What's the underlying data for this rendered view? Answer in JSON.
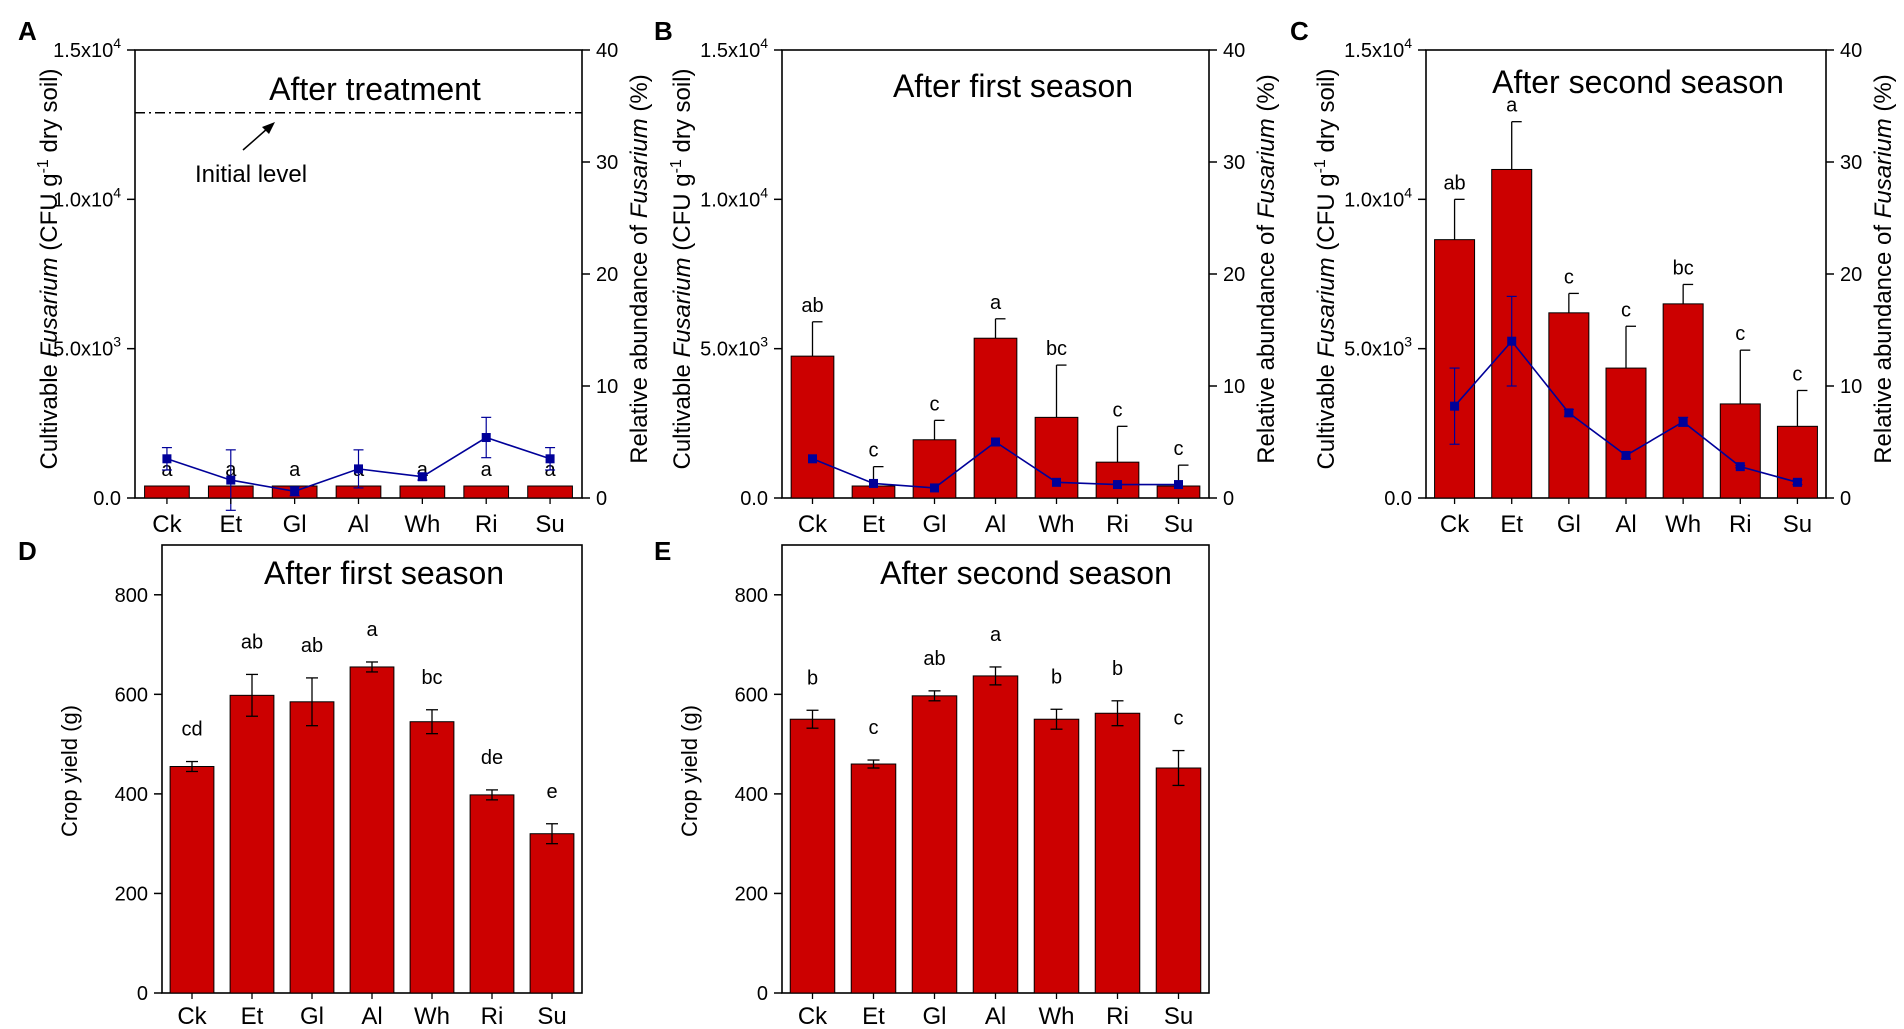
{
  "figure": {
    "shared": {
      "categories": [
        "Ck",
        "Et",
        "Gl",
        "Al",
        "Wh",
        "Ri",
        "Su"
      ],
      "bar_color": "#cc0000",
      "line_color": "#000099",
      "left_ylabel_pre": "Cultivable ",
      "left_ylabel_italic": "Fusarium",
      "left_ylabel_mid": " (CFU g",
      "left_ylabel_sup": "-1",
      "left_ylabel_post": " dry soil)",
      "right_ylabel_pre": "Relative abundance of ",
      "right_ylabel_italic": "Fusarium",
      "right_ylabel_post": "  (%)",
      "left_ticks": [
        {
          "value": 0,
          "base": "0.0",
          "exp": ""
        },
        {
          "value": 5000,
          "base": "5.0x10",
          "exp": "3"
        },
        {
          "value": 10000,
          "base": "1.0x10",
          "exp": "4"
        },
        {
          "value": 15000,
          "base": "1.5x10",
          "exp": "4"
        }
      ],
      "right_ticks": [
        "0",
        "10",
        "20",
        "30",
        "40"
      ],
      "yield_ylabel": "Crop yield (g)",
      "yield_ticks": [
        "0",
        "200",
        "400",
        "600",
        "800"
      ]
    }
  },
  "chart_data": [
    {
      "panel": "A",
      "type": "bar",
      "title": "After treatment",
      "categories": [
        "Ck",
        "Et",
        "Gl",
        "Al",
        "Wh",
        "Ri",
        "Su"
      ],
      "ylabel": "Cultivable Fusarium (CFU g-1 dry soil)",
      "y2label": "Relative abundance of Fusarium (%)",
      "ylim": [
        0,
        15000
      ],
      "y2lim": [
        0,
        40
      ],
      "series": [
        {
          "name": "Cultivable Fusarium",
          "kind": "bar",
          "axis": "left",
          "values": [
            0,
            0,
            0,
            0,
            0,
            0,
            0
          ],
          "errors": [
            0,
            0,
            0,
            0,
            0,
            0,
            0
          ],
          "labels": [
            "a",
            "a",
            "a",
            "a",
            "a",
            "a",
            "a"
          ]
        },
        {
          "name": "Relative abundance",
          "kind": "line",
          "axis": "right",
          "values": [
            3.5,
            1.6,
            0.6,
            2.6,
            1.9,
            5.4,
            3.5
          ],
          "errors": [
            1.0,
            2.7,
            0.4,
            1.7,
            0.3,
            1.8,
            1.0
          ]
        }
      ],
      "reference_line": {
        "value": 12900,
        "axis": "left",
        "label": "Initial level"
      }
    },
    {
      "panel": "B",
      "type": "bar",
      "title": "After first season",
      "categories": [
        "Ck",
        "Et",
        "Gl",
        "Al",
        "Wh",
        "Ri",
        "Su"
      ],
      "ylabel": "Cultivable Fusarium (CFU g-1 dry soil)",
      "y2label": "Relative abundance of Fusarium (%)",
      "ylim": [
        0,
        15000
      ],
      "y2lim": [
        0,
        40
      ],
      "series": [
        {
          "name": "Cultivable Fusarium",
          "kind": "bar",
          "axis": "left",
          "values": [
            4750,
            400,
            1950,
            5350,
            2700,
            1200,
            400
          ],
          "errors": [
            1150,
            650,
            650,
            650,
            1750,
            1200,
            700
          ],
          "labels": [
            "ab",
            "c",
            "c",
            "a",
            "bc",
            "c",
            "c"
          ]
        },
        {
          "name": "Relative abundance",
          "kind": "line",
          "axis": "right",
          "values": [
            3.5,
            1.3,
            0.9,
            5.0,
            1.4,
            1.2,
            1.2
          ],
          "errors": [
            0.0,
            0.0,
            0.0,
            0.0,
            0.0,
            0.0,
            0.0
          ]
        }
      ]
    },
    {
      "panel": "C",
      "type": "bar",
      "title": "After second season",
      "categories": [
        "Ck",
        "Et",
        "Gl",
        "Al",
        "Wh",
        "Ri",
        "Su"
      ],
      "ylabel": "Cultivable Fusarium (CFU g-1 dry soil)",
      "y2label": "Relative abundance of Fusarium (%)",
      "ylim": [
        0,
        15000
      ],
      "y2lim": [
        0,
        40
      ],
      "series": [
        {
          "name": "Cultivable Fusarium",
          "kind": "bar",
          "axis": "left",
          "values": [
            8650,
            11000,
            6200,
            4350,
            6500,
            3150,
            2400
          ],
          "errors": [
            1350,
            1600,
            650,
            1400,
            650,
            1800,
            1200
          ],
          "labels": [
            "ab",
            "a",
            "c",
            "c",
            "bc",
            "c",
            "c"
          ]
        },
        {
          "name": "Relative abundance",
          "kind": "line",
          "axis": "right",
          "values": [
            8.2,
            14.0,
            7.6,
            3.8,
            6.8,
            2.8,
            1.4
          ],
          "errors": [
            3.4,
            4.0,
            0.3,
            0.3,
            0.4,
            0.1,
            0.2
          ]
        }
      ]
    },
    {
      "panel": "D",
      "type": "bar",
      "title": "After first season",
      "categories": [
        "Ck",
        "Et",
        "Gl",
        "Al",
        "Wh",
        "Ri",
        "Su"
      ],
      "ylabel": "Crop yield (g)",
      "ylim": [
        0,
        900
      ],
      "series": [
        {
          "name": "Crop yield",
          "kind": "bar",
          "axis": "left",
          "values": [
            455,
            598,
            585,
            655,
            545,
            398,
            320
          ],
          "errors": [
            10,
            42,
            48,
            10,
            24,
            10,
            20
          ],
          "labels": [
            "cd",
            "ab",
            "ab",
            "a",
            "bc",
            "de",
            "e"
          ]
        }
      ]
    },
    {
      "panel": "E",
      "type": "bar",
      "title": "After second season",
      "categories": [
        "Ck",
        "Et",
        "Gl",
        "Al",
        "Wh",
        "Ri",
        "Su"
      ],
      "ylabel": "Crop yield (g)",
      "ylim": [
        0,
        900
      ],
      "series": [
        {
          "name": "Crop yield",
          "kind": "bar",
          "axis": "left",
          "values": [
            550,
            460,
            597,
            637,
            550,
            562,
            452
          ],
          "errors": [
            18,
            8,
            10,
            18,
            20,
            25,
            35
          ],
          "labels": [
            "b",
            "c",
            "ab",
            "a",
            "b",
            "b",
            "c"
          ]
        }
      ]
    }
  ]
}
